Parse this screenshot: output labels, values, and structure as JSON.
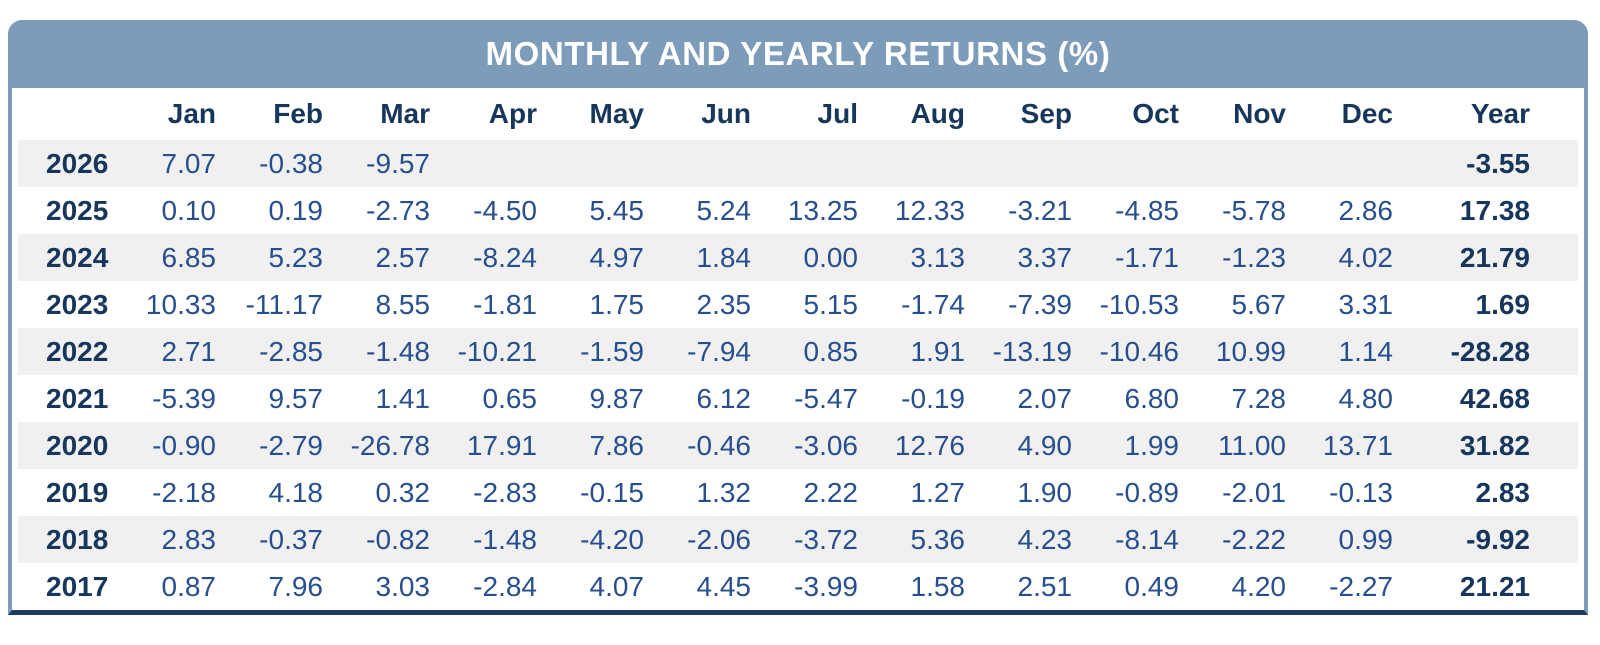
{
  "title": "MONTHLY AND YEARLY RETURNS (%)",
  "colors": {
    "header_band": "#7D9CBA",
    "stripe_row": "#F0F0F1",
    "heading_text": "#16365C",
    "value_text": "#274F8E",
    "title_text": "#FFFFFF",
    "bottom_border": "#1F3C64"
  },
  "chart_data": {
    "type": "table",
    "title": "MONTHLY AND YEARLY RETURNS (%)",
    "columns": [
      "Jan",
      "Feb",
      "Mar",
      "Apr",
      "May",
      "Jun",
      "Jul",
      "Aug",
      "Sep",
      "Oct",
      "Nov",
      "Dec",
      "Year"
    ],
    "rows": [
      {
        "year": "2026",
        "values": [
          "7.07",
          "-0.38",
          "-9.57",
          "",
          "",
          "",
          "",
          "",
          "",
          "",
          "",
          ""
        ],
        "year_total": "-3.55"
      },
      {
        "year": "2025",
        "values": [
          "0.10",
          "0.19",
          "-2.73",
          "-4.50",
          "5.45",
          "5.24",
          "13.25",
          "12.33",
          "-3.21",
          "-4.85",
          "-5.78",
          "2.86"
        ],
        "year_total": "17.38"
      },
      {
        "year": "2024",
        "values": [
          "6.85",
          "5.23",
          "2.57",
          "-8.24",
          "4.97",
          "1.84",
          "0.00",
          "3.13",
          "3.37",
          "-1.71",
          "-1.23",
          "4.02"
        ],
        "year_total": "21.79"
      },
      {
        "year": "2023",
        "values": [
          "10.33",
          "-11.17",
          "8.55",
          "-1.81",
          "1.75",
          "2.35",
          "5.15",
          "-1.74",
          "-7.39",
          "-10.53",
          "5.67",
          "3.31"
        ],
        "year_total": "1.69"
      },
      {
        "year": "2022",
        "values": [
          "2.71",
          "-2.85",
          "-1.48",
          "-10.21",
          "-1.59",
          "-7.94",
          "0.85",
          "1.91",
          "-13.19",
          "-10.46",
          "10.99",
          "1.14"
        ],
        "year_total": "-28.28"
      },
      {
        "year": "2021",
        "values": [
          "-5.39",
          "9.57",
          "1.41",
          "0.65",
          "9.87",
          "6.12",
          "-5.47",
          "-0.19",
          "2.07",
          "6.80",
          "7.28",
          "4.80"
        ],
        "year_total": "42.68"
      },
      {
        "year": "2020",
        "values": [
          "-0.90",
          "-2.79",
          "-26.78",
          "17.91",
          "7.86",
          "-0.46",
          "-3.06",
          "12.76",
          "4.90",
          "1.99",
          "11.00",
          "13.71"
        ],
        "year_total": "31.82"
      },
      {
        "year": "2019",
        "values": [
          "-2.18",
          "4.18",
          "0.32",
          "-2.83",
          "-0.15",
          "1.32",
          "2.22",
          "1.27",
          "1.90",
          "-0.89",
          "-2.01",
          "-0.13"
        ],
        "year_total": "2.83"
      },
      {
        "year": "2018",
        "values": [
          "2.83",
          "-0.37",
          "-0.82",
          "-1.48",
          "-4.20",
          "-2.06",
          "-3.72",
          "5.36",
          "4.23",
          "-8.14",
          "-2.22",
          "0.99"
        ],
        "year_total": "-9.92"
      },
      {
        "year": "2017",
        "values": [
          "0.87",
          "7.96",
          "3.03",
          "-2.84",
          "4.07",
          "4.45",
          "-3.99",
          "1.58",
          "2.51",
          "0.49",
          "4.20",
          "-2.27"
        ],
        "year_total": "21.21"
      }
    ]
  }
}
